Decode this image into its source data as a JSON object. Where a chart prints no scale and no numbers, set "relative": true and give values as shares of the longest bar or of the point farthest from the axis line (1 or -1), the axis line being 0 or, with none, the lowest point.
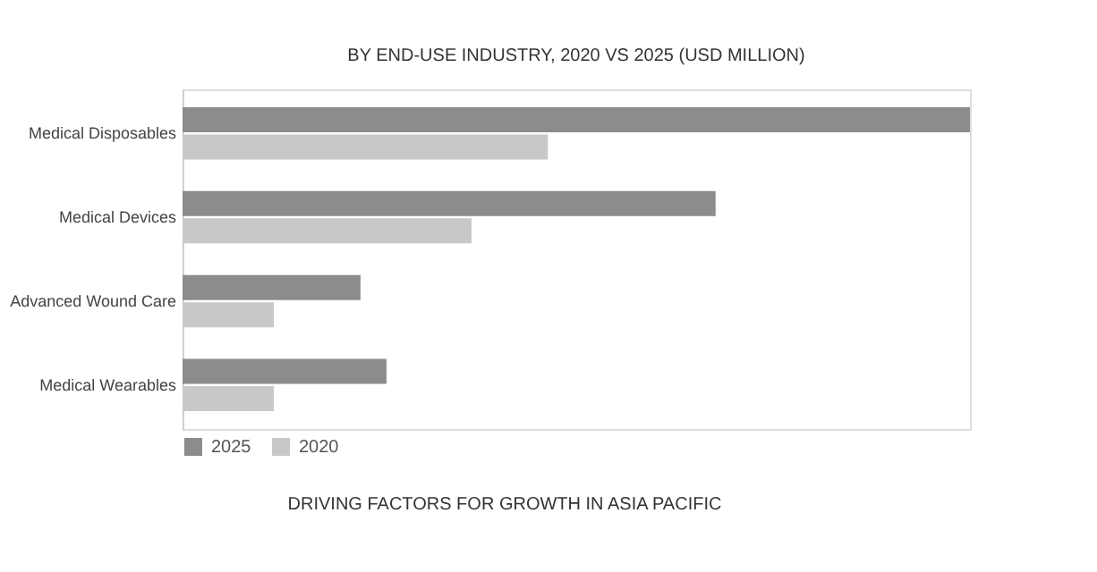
{
  "chart_data": {
    "type": "bar",
    "orientation": "horizontal",
    "relative": true,
    "title": "BY END-USE INDUSTRY, 2020 VS 2025 (USD MILLION)",
    "categories": [
      "Medical Disposables",
      "Medical Devices",
      "Advanced Wound Care",
      "Medical Wearables"
    ],
    "series": [
      {
        "name": "2025",
        "color": "#8c8c8c",
        "values": [
          1,
          0.677,
          0.226,
          0.259
        ]
      },
      {
        "name": "2020",
        "color": "#c8c8c8",
        "values": [
          0.464,
          0.367,
          0.116,
          0.116
        ]
      }
    ],
    "legend": "bottom",
    "annotations": [
      "DRIVING FACTORS FOR GROWTH IN ASIA PACIFIC"
    ]
  }
}
